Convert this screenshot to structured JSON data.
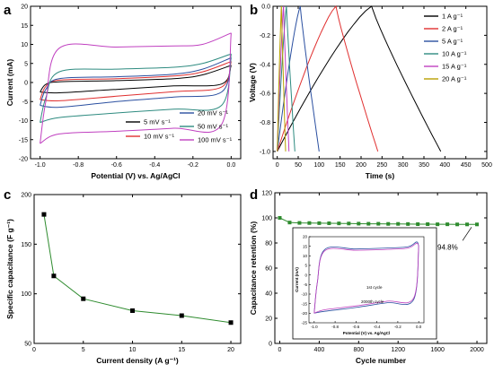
{
  "chart_data": [
    {
      "panel_label": "a",
      "type": "line",
      "xlabel": "Potential (V) vs. Ag/AgCl",
      "ylabel": "Current (mA)",
      "xlim": [
        -1.05,
        0.05
      ],
      "ylim": [
        -20,
        20
      ],
      "xticks": [
        -1.0,
        -0.8,
        -0.6,
        -0.4,
        -0.2,
        0.0
      ],
      "yticks": [
        -20,
        -15,
        -10,
        -5,
        0,
        5,
        10,
        15,
        20
      ],
      "legend_placement": "bottom-right",
      "series": [
        {
          "name": "5 mV s⁻¹",
          "color": "#000000",
          "scan_rate": 5,
          "upper": [
            [
              -1.0,
              -2.5
            ],
            [
              -0.97,
              -0.5
            ],
            [
              -0.9,
              0.2
            ],
            [
              -0.6,
              0.5
            ],
            [
              -0.3,
              1.0
            ],
            [
              -0.15,
              2.0
            ],
            [
              0.0,
              4.5
            ]
          ],
          "lower": [
            [
              -1.0,
              -2.5
            ],
            [
              -0.9,
              -2.7
            ],
            [
              -0.6,
              -1.8
            ],
            [
              -0.3,
              -0.9
            ],
            [
              -0.05,
              -0.4
            ],
            [
              0.0,
              4.5
            ]
          ]
        },
        {
          "name": "10 mV s⁻¹",
          "color": "#e03030",
          "scan_rate": 10,
          "upper": [
            [
              -1.0,
              -4.5
            ],
            [
              -0.97,
              -1.0
            ],
            [
              -0.9,
              0.6
            ],
            [
              -0.6,
              1.0
            ],
            [
              -0.3,
              1.7
            ],
            [
              -0.15,
              2.8
            ],
            [
              0.0,
              5.5
            ]
          ],
          "lower": [
            [
              -1.0,
              -4.5
            ],
            [
              -0.9,
              -4.8
            ],
            [
              -0.6,
              -3.6
            ],
            [
              -0.3,
              -2.4
            ],
            [
              -0.05,
              -1.2
            ],
            [
              0.0,
              5.5
            ]
          ]
        },
        {
          "name": "20 mV s⁻¹",
          "color": "#2a4fa0",
          "scan_rate": 20,
          "upper": [
            [
              -1.0,
              -6.0
            ],
            [
              -0.97,
              -1.8
            ],
            [
              -0.9,
              1.0
            ],
            [
              -0.6,
              1.5
            ],
            [
              -0.3,
              2.2
            ],
            [
              -0.15,
              3.5
            ],
            [
              0.0,
              6.5
            ]
          ],
          "lower": [
            [
              -1.0,
              -6.0
            ],
            [
              -0.9,
              -6.5
            ],
            [
              -0.6,
              -5.0
            ],
            [
              -0.3,
              -3.8
            ],
            [
              -0.05,
              -2.5
            ],
            [
              0.0,
              6.5
            ]
          ]
        },
        {
          "name": "50 mV s⁻¹",
          "color": "#2e8b80",
          "scan_rate": 50,
          "upper": [
            [
              -1.0,
              -10.5
            ],
            [
              -0.97,
              -4.0
            ],
            [
              -0.9,
              2.8
            ],
            [
              -0.6,
              3.5
            ],
            [
              -0.3,
              4.0
            ],
            [
              -0.15,
              5.0
            ],
            [
              0.0,
              7.5
            ]
          ],
          "lower": [
            [
              -1.0,
              -10.5
            ],
            [
              -0.9,
              -9.2
            ],
            [
              -0.6,
              -8.0
            ],
            [
              -0.3,
              -7.0
            ],
            [
              -0.05,
              -6.0
            ],
            [
              0.0,
              7.5
            ]
          ]
        },
        {
          "name": "100 mV s⁻¹",
          "color": "#c040c0",
          "scan_rate": 100,
          "upper": [
            [
              -1.0,
              -16.0
            ],
            [
              -0.97,
              -5.0
            ],
            [
              -0.9,
              9.0
            ],
            [
              -0.6,
              9.3
            ],
            [
              -0.3,
              9.6
            ],
            [
              -0.15,
              10.0
            ],
            [
              0.0,
              13.0
            ]
          ],
          "lower": [
            [
              -1.0,
              -16.0
            ],
            [
              -0.9,
              -13.5
            ],
            [
              -0.6,
              -12.8
            ],
            [
              -0.3,
              -12.0
            ],
            [
              -0.05,
              -11.0
            ],
            [
              0.0,
              13.0
            ]
          ]
        }
      ]
    },
    {
      "panel_label": "b",
      "type": "line",
      "xlabel": "Time (s)",
      "ylabel": "Voltage (V)",
      "xlim": [
        -10,
        500
      ],
      "ylim": [
        -1.05,
        0.0
      ],
      "xticks": [
        0,
        50,
        100,
        150,
        200,
        250,
        300,
        350,
        400,
        450,
        500
      ],
      "yticks": [
        -1.0,
        -0.8,
        -0.6,
        -0.4,
        -0.2,
        0.0
      ],
      "legend_placement": "top-right",
      "series": [
        {
          "name": "1 A g⁻¹",
          "color": "#000000",
          "charge_end": 225,
          "discharge_end": 390
        },
        {
          "name": "2 A g⁻¹",
          "color": "#e03030",
          "charge_end": 140,
          "discharge_end": 240
        },
        {
          "name": "5 A g⁻¹",
          "color": "#2a4fa0",
          "charge_end": 55,
          "discharge_end": 100
        },
        {
          "name": "10 A g⁻¹",
          "color": "#2e8b80",
          "charge_end": 22,
          "discharge_end": 42
        },
        {
          "name": "15 A g⁻¹",
          "color": "#c040c0",
          "charge_end": 15,
          "discharge_end": 28
        },
        {
          "name": "20 A g⁻¹",
          "color": "#b8a000",
          "charge_end": 10,
          "discharge_end": 20
        }
      ]
    },
    {
      "panel_label": "c",
      "type": "line",
      "xlabel": "Current density (A g⁻¹)",
      "ylabel": "Specific capacitance (F g⁻¹)",
      "xlim": [
        0,
        21
      ],
      "ylim": [
        50,
        200
      ],
      "xticks": [
        0,
        5,
        10,
        15,
        20
      ],
      "yticks": [
        50,
        100,
        150,
        200
      ],
      "line_color": "#2e8b2e",
      "marker_color": "#000000",
      "x": [
        1,
        2,
        5,
        10,
        15,
        20
      ],
      "y": [
        180,
        118,
        95,
        83,
        78,
        71
      ]
    },
    {
      "panel_label": "d",
      "type": "line",
      "xlabel": "Cycle number",
      "ylabel": "Capacitance retention (%)",
      "xlim": [
        -50,
        2100
      ],
      "ylim": [
        0,
        120
      ],
      "xticks": [
        0,
        400,
        800,
        1200,
        1600,
        2000
      ],
      "yticks": [
        0,
        20,
        40,
        60,
        80,
        100,
        120
      ],
      "line_color": "#2e8b2e",
      "marker_color": "#2e8b2e",
      "x": [
        0,
        100,
        200,
        300,
        400,
        500,
        600,
        700,
        800,
        900,
        1000,
        1100,
        1200,
        1300,
        1400,
        1500,
        1600,
        1700,
        1800,
        1900,
        2000
      ],
      "y": [
        100,
        96.3,
        96,
        95.9,
        95.8,
        95.7,
        95.6,
        95.5,
        95.4,
        95.3,
        95.3,
        95.2,
        95.2,
        95.1,
        95.0,
        95.0,
        94.9,
        94.9,
        94.8,
        94.8,
        94.8
      ],
      "annotation": "94.8%",
      "inset": {
        "type": "line",
        "xlabel": "Potential (V) vs. Ag/AgCl",
        "ylabel": "Current (mA)",
        "xlim": [
          -1.05,
          0.05
        ],
        "ylim": [
          -25,
          20
        ],
        "xticks": [
          -1.0,
          -0.8,
          -0.6,
          -0.4,
          -0.2,
          0.0
        ],
        "xtick_labels": [
          "-1.0",
          "-0.8",
          "-0.6",
          "-0.4",
          "-0.2",
          "0.0"
        ],
        "yticks": [
          -25,
          -20,
          -15,
          -10,
          -5,
          0,
          5,
          10,
          15,
          20
        ],
        "label_first": "1st cycle",
        "label_last": "2000th cycle"
      }
    }
  ]
}
